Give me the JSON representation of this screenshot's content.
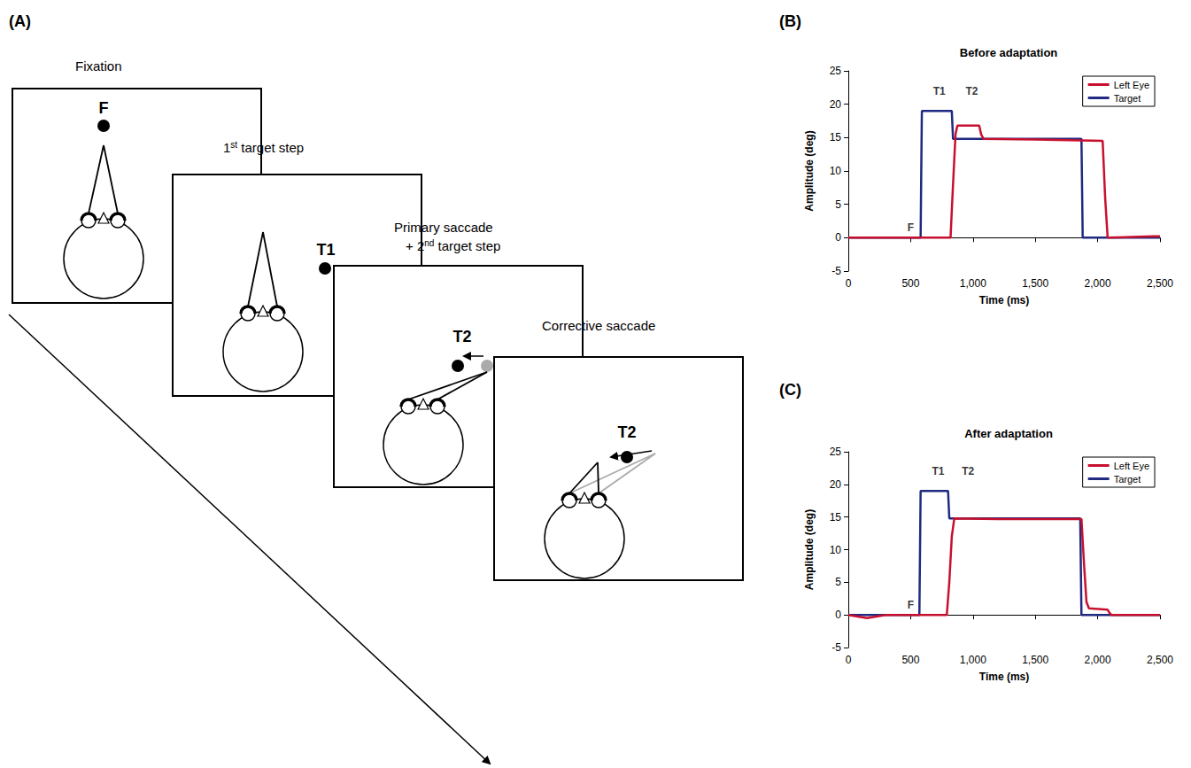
{
  "diagram": {
    "panel": "(A)",
    "frames": [
      {
        "caption": [
          "Fixation"
        ],
        "target_label": "F"
      },
      {
        "caption": [
          "1st target step"
        ],
        "target_label": "T1"
      },
      {
        "caption": [
          "Primary saccade",
          "+ 2nd target step"
        ],
        "target_label": "T2"
      },
      {
        "caption": [
          "Corrective saccade"
        ],
        "target_label": "T2"
      }
    ]
  },
  "chart_data": [
    {
      "type": "line",
      "panel": "(B)",
      "title": "Before adaptation",
      "x_label": "Time (ms)",
      "y_label": "Amplitude (deg)",
      "xlim": [
        0,
        2500
      ],
      "xticks": [
        0,
        500,
        1000,
        1500,
        2000,
        2500
      ],
      "ylim": [
        -5,
        25
      ],
      "yticks": [
        -5,
        0,
        5,
        10,
        15,
        20,
        25
      ],
      "grid": false,
      "legend": "upper right",
      "series": [
        {
          "name": "Left Eye",
          "color": "#c8102e",
          "x": [
            0,
            820,
            840,
            860,
            875,
            1050,
            1065,
            1085,
            1500,
            2040,
            2060,
            2080,
            2450,
            2500
          ],
          "values": [
            0,
            0,
            8,
            15.5,
            16.8,
            16.8,
            15.5,
            14.8,
            14.7,
            14.5,
            6,
            0,
            0.2,
            0.2
          ]
        },
        {
          "name": "Target",
          "color": "#1f2a80",
          "x": [
            0,
            580,
            590,
            830,
            840,
            1870,
            1880,
            2500
          ],
          "values": [
            0,
            0,
            19,
            19,
            14.8,
            14.8,
            0,
            0
          ]
        }
      ],
      "annotations": [
        {
          "text": "F",
          "x": 500,
          "y": 1.5
        },
        {
          "text": "T1",
          "x": 730,
          "y": 22
        },
        {
          "text": "T2",
          "x": 990,
          "y": 22
        }
      ]
    },
    {
      "type": "line",
      "panel": "(C)",
      "title": "After adaptation",
      "x_label": "Time (ms)",
      "y_label": "Amplitude (deg)",
      "xlim": [
        0,
        2500
      ],
      "xticks": [
        0,
        500,
        1000,
        1500,
        2000,
        2500
      ],
      "ylim": [
        -5,
        25
      ],
      "yticks": [
        -5,
        0,
        5,
        10,
        15,
        20,
        25
      ],
      "grid": false,
      "legend": "upper right",
      "series": [
        {
          "name": "Left Eye",
          "color": "#c8102e",
          "x": [
            0,
            150,
            300,
            790,
            810,
            830,
            850,
            1200,
            1870,
            1890,
            1910,
            1930,
            2080,
            2095,
            2110,
            2500
          ],
          "values": [
            0,
            -0.5,
            0,
            0,
            5,
            12,
            14.8,
            14.7,
            14.7,
            8,
            2,
            1,
            0.8,
            0.3,
            0,
            0
          ]
        },
        {
          "name": "Target",
          "color": "#1f2a80",
          "x": [
            0,
            570,
            580,
            800,
            810,
            1860,
            1870,
            2500
          ],
          "values": [
            0,
            0,
            19,
            19,
            14.8,
            14.8,
            0,
            0
          ]
        }
      ],
      "annotations": [
        {
          "text": "F",
          "x": 500,
          "y": 1.5
        },
        {
          "text": "T1",
          "x": 720,
          "y": 22
        },
        {
          "text": "T2",
          "x": 960,
          "y": 22
        }
      ]
    }
  ]
}
